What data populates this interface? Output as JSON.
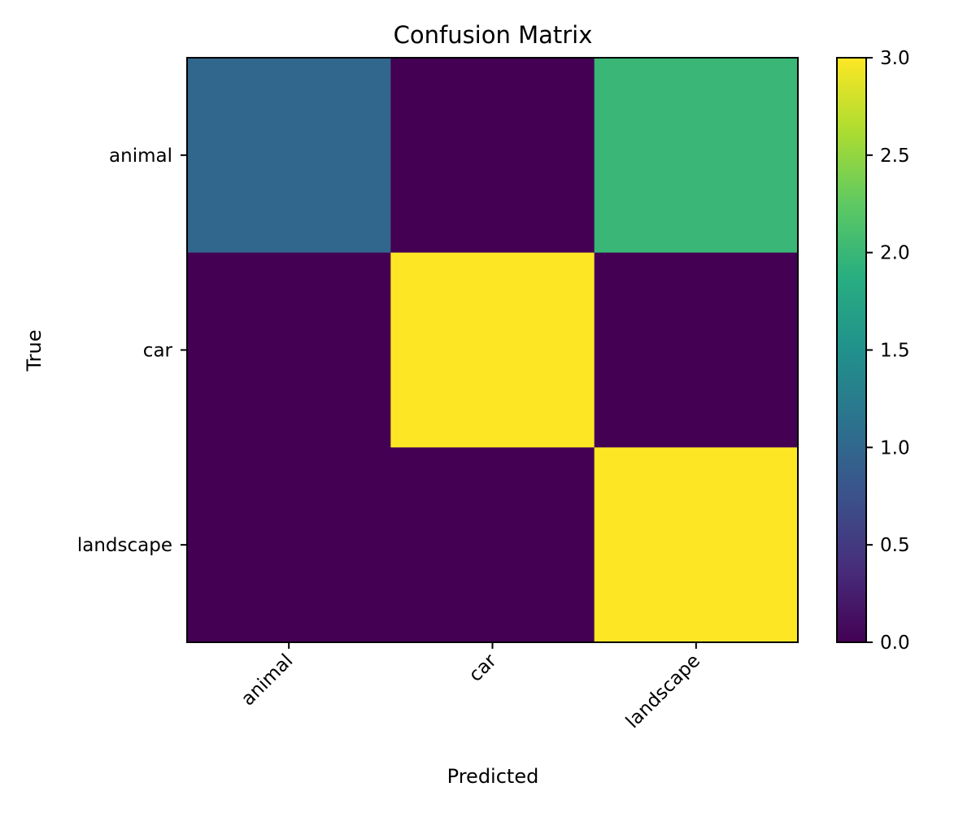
{
  "chart_data": {
    "type": "heatmap",
    "title": "Confusion Matrix",
    "xlabel": "Predicted",
    "ylabel": "True",
    "x_categories": [
      "animal",
      "car",
      "landscape"
    ],
    "y_categories": [
      "animal",
      "car",
      "landscape"
    ],
    "values": [
      [
        1,
        0,
        2
      ],
      [
        0,
        3,
        0
      ],
      [
        0,
        0,
        3
      ]
    ],
    "colorbar": {
      "range": [
        0,
        3
      ],
      "ticks": [
        "0.0",
        "0.5",
        "1.0",
        "1.5",
        "2.0",
        "2.5",
        "3.0"
      ],
      "colormap": "viridis"
    },
    "grid": false,
    "x_tick_rotation_deg": 45
  }
}
